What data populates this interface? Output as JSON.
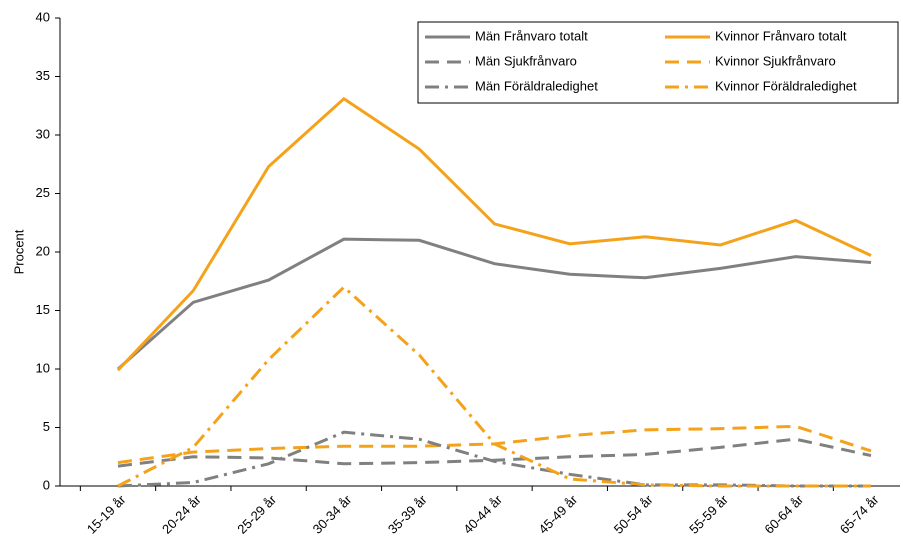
{
  "chart_data": {
    "type": "line",
    "y_label": "Procent",
    "categories": [
      "15-19 år",
      "20-24 år",
      "25-29 år",
      "30-34 år",
      "35-39 år",
      "40-44 år",
      "45-49 år",
      "50-54 år",
      "55-59 år",
      "60-64 år",
      "65-74 år"
    ],
    "ylim": [
      0,
      40
    ],
    "yticks": [
      0,
      5,
      10,
      15,
      20,
      25,
      30,
      35,
      40
    ],
    "grid": false,
    "legend": "top-right",
    "series": [
      {
        "name": "Män Frånvaro totalt",
        "color": "#808080",
        "dash": "solid",
        "values": [
          10,
          15.7,
          17.6,
          21.1,
          21.0,
          19.0,
          18.1,
          17.8,
          18.6,
          19.6,
          19.1
        ]
      },
      {
        "name": "Kvinnor Frånvaro totalt",
        "color": "#f5a21b",
        "dash": "solid",
        "values": [
          9.9,
          16.7,
          27.3,
          33.1,
          28.8,
          22.4,
          20.7,
          21.3,
          20.6,
          22.7,
          19.7
        ]
      },
      {
        "name": "Män Sjukfrånvaro",
        "color": "#808080",
        "dash": "dashed",
        "values": [
          1.7,
          2.5,
          2.4,
          1.9,
          2.0,
          2.2,
          2.5,
          2.7,
          3.3,
          4.0,
          2.6
        ]
      },
      {
        "name": "Kvinnor Sjukfrånvaro",
        "color": "#f5a21b",
        "dash": "dashed",
        "values": [
          2.0,
          2.9,
          3.2,
          3.4,
          3.4,
          3.6,
          4.3,
          4.8,
          4.9,
          5.1,
          3.0
        ]
      },
      {
        "name": "Män Föräldraledighet",
        "color": "#808080",
        "dash": "dashdot",
        "values": [
          0,
          0.3,
          1.9,
          4.6,
          4.0,
          2.1,
          1.0,
          0.1,
          0.1,
          0,
          0
        ]
      },
      {
        "name": "Kvinnor Föräldraledighet",
        "color": "#f5a21b",
        "dash": "dashdot",
        "values": [
          0,
          3.3,
          10.8,
          17.0,
          11.2,
          3.6,
          0.6,
          0.1,
          0,
          0,
          0
        ]
      }
    ]
  }
}
